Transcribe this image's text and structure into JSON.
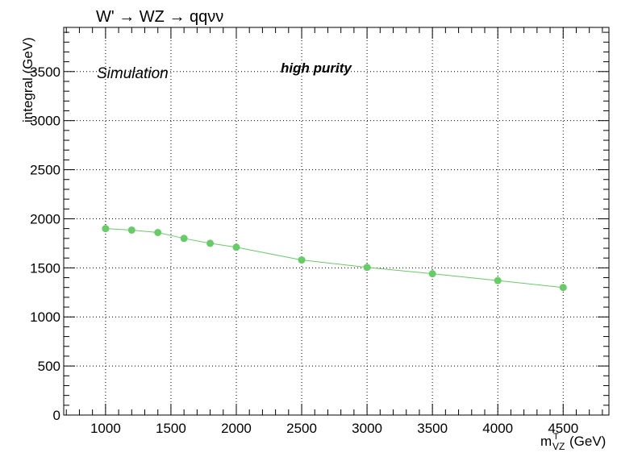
{
  "chart_data": {
    "type": "line",
    "title": "W' → WZ → qqνν",
    "xlabel": "m",
    "xlabel_sup": "T",
    "xlabel_sub": "VZ",
    "xlabel_unit": "(GeV)",
    "ylabel": "integral (GeV)",
    "xlim": [
      680,
      4850
    ],
    "ylim": [
      0,
      3950
    ],
    "x_ticks": [
      1000,
      1500,
      2000,
      2500,
      3000,
      3500,
      4000,
      4500
    ],
    "y_ticks": [
      0,
      500,
      1000,
      1500,
      2000,
      2500,
      3000,
      3500
    ],
    "grid": true,
    "annotations": [
      "Simulation",
      "high purity"
    ],
    "series": [
      {
        "color": "#66cc66",
        "x": [
          1000,
          1200,
          1400,
          1600,
          1800,
          2000,
          2500,
          3000,
          3500,
          4000,
          4500
        ],
        "y": [
          1900,
          1885,
          1860,
          1800,
          1750,
          1710,
          1580,
          1505,
          1440,
          1370,
          1300
        ]
      }
    ]
  }
}
